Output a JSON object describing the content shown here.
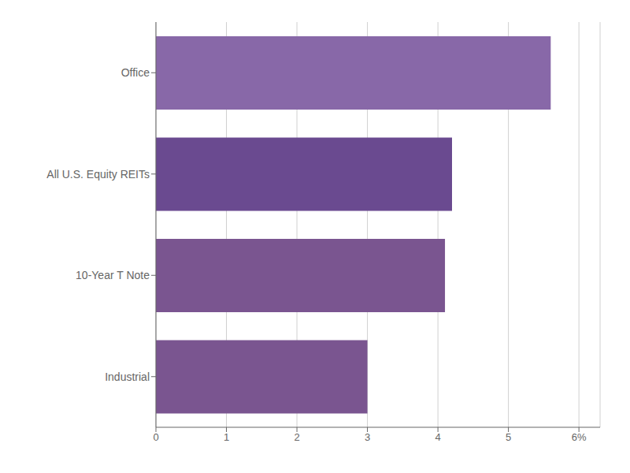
{
  "chart_data": {
    "type": "bar",
    "orientation": "horizontal",
    "categories": [
      "Industrial",
      "10-Year T Note",
      "All U.S. Equity REITs",
      "Office"
    ],
    "values": [
      3.0,
      4.1,
      4.2,
      5.6
    ],
    "colors": [
      "#7a5590",
      "#7a5590",
      "#6a4a90",
      "#8868a8"
    ],
    "xlim": [
      0,
      6.3
    ],
    "xticks": [
      0,
      1,
      2,
      3,
      4,
      5,
      {
        "value": 6,
        "label": "6%"
      }
    ],
    "grid": true
  }
}
